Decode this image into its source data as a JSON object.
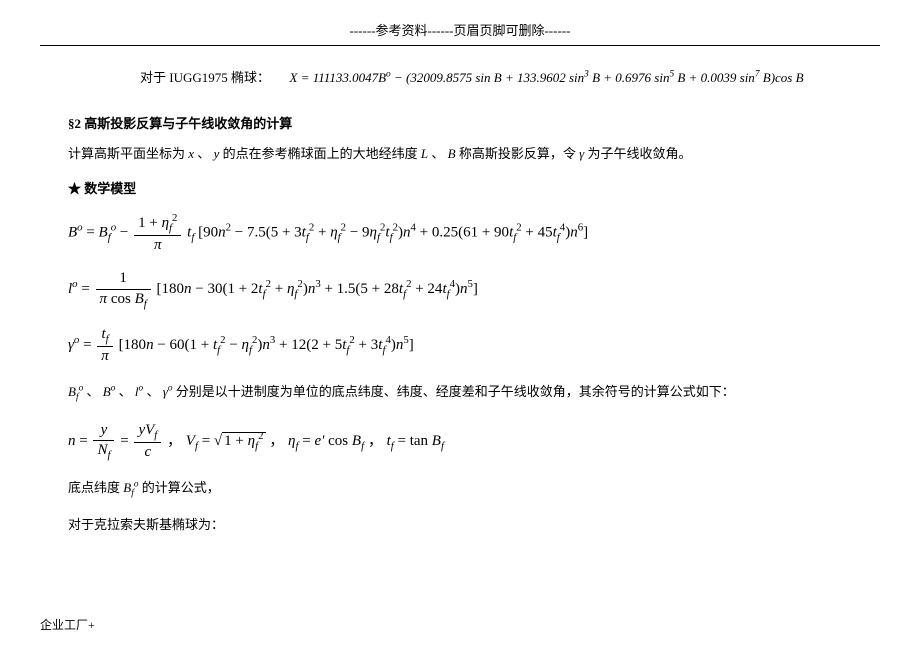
{
  "header": "------参考资料------页眉页脚可删除------",
  "line1_prefix": "对于 IUGG1975 椭球：",
  "line1_formula": "X = 111133.0047B° − (32009.8575 sin B + 133.9602 sin³ B + 0.6976 sin⁵ B + 0.0039 sin⁷ B)cos B",
  "section_title": "§2 高斯投影反算与子午线收敛角的计算",
  "para1_a": "计算高斯平面坐标为 ",
  "para1_b": "x",
  "para1_c": " 、 ",
  "para1_d": "y",
  "para1_e": " 的点在参考椭球面上的大地经纬度 ",
  "para1_f": "L",
  "para1_g": "、",
  "para1_h": "B",
  "para1_i": " 称高斯投影反算，令 ",
  "para1_j": "γ",
  "para1_k": " 为子午线收敛角。",
  "star": "★ 数学模型",
  "symbols_line_a": "、",
  "symbols_line_end": " 分别是以十进制度为单位的底点纬度、纬度、经度差和子午线收敛角，其余符号的计算公式如下：",
  "bottom1": "底点纬度",
  "bottom2": "的计算公式，",
  "bottom3": "对于克拉索夫斯基椭球为：",
  "footer": "企业工厂+"
}
